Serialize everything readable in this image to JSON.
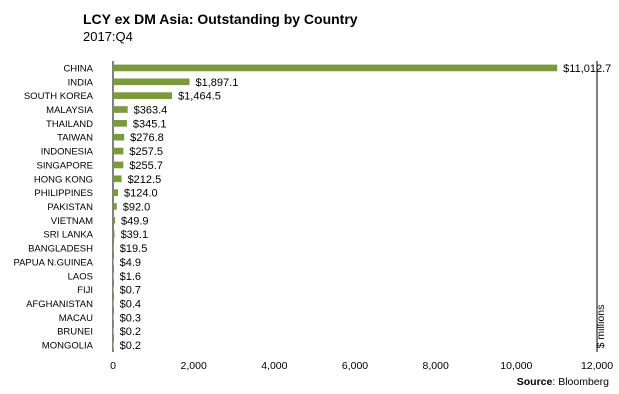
{
  "chart_data": {
    "type": "bar",
    "orientation": "horizontal",
    "title": "LCY ex DM Asia:  Outstanding by Country",
    "subtitle": "2017:Q4",
    "ylabel": "$ millions",
    "source_label": "Source",
    "source_value": ": Bloomberg",
    "xlim": [
      0,
      12000
    ],
    "xticks": [
      0,
      2000,
      4000,
      6000,
      8000,
      10000,
      12000
    ],
    "xtick_labels": [
      "0",
      "2,000",
      "4,000",
      "6,000",
      "8,000",
      "10,000",
      "12,000"
    ],
    "grid": false,
    "bar_color": "#7a9a3c",
    "categories": [
      "CHINA",
      "INDIA",
      "SOUTH KOREA",
      "MALAYSIA",
      "THAILAND",
      "TAIWAN",
      "INDONESIA",
      "SINGAPORE",
      "HONG KONG",
      "PHILIPPINES",
      "PAKISTAN",
      "VIETNAM",
      "SRI LANKA",
      "BANGLADESH",
      "PAPUA N.GUINEA",
      "LAOS",
      "FIJI",
      "AFGHANISTAN",
      "MACAU",
      "BRUNEI",
      "MONGOLIA"
    ],
    "values": [
      11012.7,
      1897.1,
      1464.5,
      363.4,
      345.1,
      276.8,
      257.5,
      255.7,
      212.5,
      124.0,
      92.0,
      49.9,
      39.1,
      19.5,
      4.9,
      1.6,
      0.7,
      0.4,
      0.3,
      0.2,
      0.2
    ],
    "value_labels": [
      "$11,012.7",
      "$1,897.1",
      "$1,464.5",
      "$363.4",
      "$345.1",
      "$276.8",
      "$257.5",
      "$255.7",
      "$212.5",
      "$124.0",
      "$92.0",
      "$49.9",
      "$39.1",
      "$19.5",
      "$4.9",
      "$1.6",
      "$0.7",
      "$0.4",
      "$0.3",
      "$0.2",
      "$0.2"
    ]
  }
}
